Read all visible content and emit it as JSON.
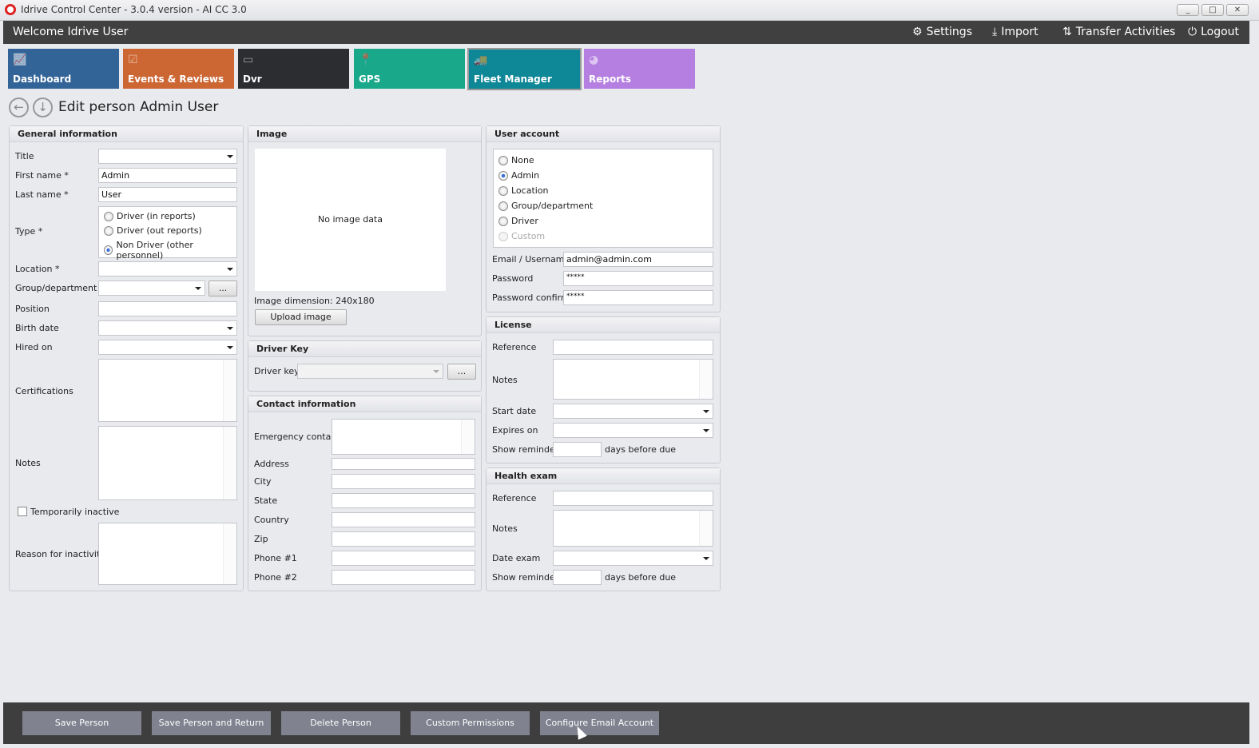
{
  "window": {
    "title": "Idrive Control Center - 3.0.4 version - AI CC 3.0",
    "minimize": "_",
    "maximize": "□",
    "close": "✕"
  },
  "header": {
    "welcome": "Welcome Idrive User",
    "settings": "Settings",
    "import": "Import",
    "transfer": "Transfer Activities",
    "logout": "Logout"
  },
  "tiles": [
    {
      "label": "Dashboard",
      "color": "#336497"
    },
    {
      "label": "Events & Reviews",
      "color": "#cc6633"
    },
    {
      "label": "Dvr",
      "color": "#2b2d31"
    },
    {
      "label": "GPS",
      "color": "#1aa88a"
    },
    {
      "label": "Fleet Manager",
      "color": "#0e8797",
      "active": true
    },
    {
      "label": "Reports",
      "color": "#b47fe0"
    }
  ],
  "page": {
    "title": "Edit person Admin User"
  },
  "general": {
    "header": "General information",
    "title_label": "Title",
    "title_value": "",
    "first_name_label": "First name *",
    "first_name": "Admin",
    "last_name_label": "Last name *",
    "last_name": "User",
    "type_label": "Type *",
    "type_options": [
      "Driver (in reports)",
      "Driver (out reports)",
      "Non Driver (other personnel)"
    ],
    "type_selected": "Non Driver (other personnel)",
    "location_label": "Location *",
    "group_label": "Group/department",
    "ellipsis": "...",
    "position_label": "Position",
    "birth_label": "Birth date",
    "hired_label": "Hired on",
    "cert_label": "Certifications",
    "notes_label": "Notes",
    "inactive_label": "Temporarily inactive",
    "inactive_checked": false,
    "reason_label": "Reason for inactivity"
  },
  "image": {
    "header": "Image",
    "no_data": "No image data",
    "dimension_label": "Image dimension:",
    "dimension": "240x180",
    "upload": "Upload image"
  },
  "driver_key": {
    "header": "Driver Key",
    "label": "Driver key",
    "ellipsis": "..."
  },
  "contact": {
    "header": "Contact information",
    "emergency": "Emergency contact",
    "address": "Address",
    "city": "City",
    "state": "State",
    "country": "Country",
    "zip": "Zip",
    "phone1": "Phone #1",
    "phone2": "Phone #2"
  },
  "account": {
    "header": "User account",
    "options": [
      "None",
      "Admin",
      "Location",
      "Group/department",
      "Driver",
      "Custom"
    ],
    "selected": "Admin",
    "disabled": "Custom",
    "email_label": "Email / Username",
    "email": "admin@admin.com",
    "password_label": "Password",
    "password": "*****",
    "confirm_label": "Password confirm",
    "confirm": "*****"
  },
  "license": {
    "header": "License",
    "reference": "Reference",
    "notes": "Notes",
    "start": "Start date",
    "expires": "Expires on",
    "reminder": "Show reminder",
    "days": "days before due"
  },
  "health": {
    "header": "Health exam",
    "reference": "Reference",
    "notes": "Notes",
    "date": "Date exam",
    "reminder": "Show reminder",
    "days": "days before due"
  },
  "footer": {
    "buttons": [
      "Save Person",
      "Save Person and Return",
      "Delete Person",
      "Custom Permissions",
      "Configure Email Account"
    ]
  }
}
